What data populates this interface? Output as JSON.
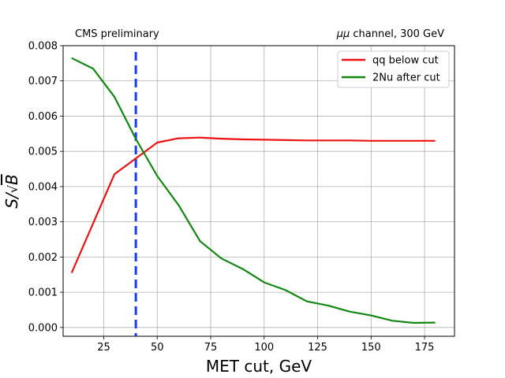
{
  "chart_data": {
    "type": "line",
    "title_left": "CMS preliminary",
    "title_right_prefix": "μμ",
    "title_right_suffix": " channel, 300 GeV",
    "xlabel": "MET cut, GeV",
    "ylabel_main": "S/",
    "ylabel_sqrt": "√",
    "ylabel_var": "B",
    "xlim": [
      6,
      189
    ],
    "ylim": [
      -0.00025,
      0.008
    ],
    "xticks": [
      25,
      50,
      75,
      100,
      125,
      150,
      175
    ],
    "xtick_labels": [
      "25",
      "50",
      "75",
      "100",
      "125",
      "150",
      "175"
    ],
    "yticks": [
      0,
      0.001,
      0.002,
      0.003,
      0.004,
      0.005,
      0.006,
      0.007,
      0.008
    ],
    "ytick_labels": [
      "0.000",
      "0.001",
      "0.002",
      "0.003",
      "0.004",
      "0.005",
      "0.006",
      "0.007",
      "0.008"
    ],
    "grid": true,
    "legend_position": "top-right",
    "series": [
      {
        "name": "qq below cut",
        "color": "#ee1111",
        "x": [
          10,
          20,
          30,
          40,
          50,
          60,
          70,
          80,
          90,
          100,
          110,
          120,
          130,
          140,
          150,
          160,
          170,
          180
        ],
        "y": [
          0.00155,
          0.00295,
          0.00435,
          0.0048,
          0.00525,
          0.00537,
          0.00539,
          0.00536,
          0.00534,
          0.00533,
          0.00532,
          0.00531,
          0.00531,
          0.00531,
          0.0053,
          0.0053,
          0.0053,
          0.0053
        ]
      },
      {
        "name": "2Nu after cut",
        "color": "#118811",
        "x": [
          10,
          20,
          30,
          40,
          50,
          60,
          70,
          80,
          90,
          100,
          110,
          120,
          130,
          140,
          150,
          160,
          170,
          180
        ],
        "y": [
          0.00765,
          0.00735,
          0.00655,
          0.00535,
          0.0043,
          0.00347,
          0.00245,
          0.00196,
          0.00166,
          0.00128,
          0.00106,
          0.00074,
          0.00062,
          0.00045,
          0.00034,
          0.00019,
          0.00013,
          0.00014
        ]
      }
    ],
    "vline": {
      "x": 40,
      "color": "#1a3cff",
      "style": "dashed"
    }
  }
}
